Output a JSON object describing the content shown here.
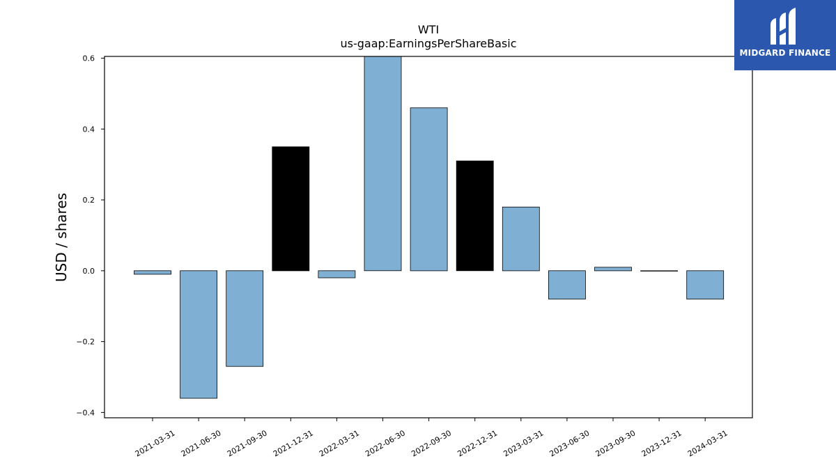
{
  "chart_data": {
    "type": "bar",
    "title": "WTI",
    "subtitle": "us-gaap:EarningsPerShareBasic",
    "xlabel": "",
    "ylabel": "USD / shares",
    "ylim": [
      -0.415,
      0.605
    ],
    "yticks": [
      0.6,
      0.4,
      0.2,
      0.0,
      -0.2,
      -0.4
    ],
    "ytick_labels": [
      "0.6",
      "0.4",
      "0.2",
      "0.0",
      "−0.2",
      "−0.4"
    ],
    "grid": false,
    "categories": [
      "2021-03-31",
      "2021-06-30",
      "2021-09-30",
      "2021-12-31",
      "2022-03-31",
      "2022-06-30",
      "2022-09-30",
      "2022-12-31",
      "2023-03-31",
      "2023-06-30",
      "2023-09-30",
      "2023-12-31",
      "2024-03-31"
    ],
    "values": [
      -0.01,
      -0.36,
      -0.27,
      0.35,
      -0.02,
      0.61,
      0.46,
      0.31,
      0.18,
      -0.08,
      0.01,
      0.0,
      -0.08
    ],
    "highlight": [
      false,
      false,
      false,
      true,
      false,
      false,
      false,
      true,
      false,
      false,
      false,
      false,
      false
    ],
    "colors": {
      "bar": "#7fb0d3",
      "highlight": "#000000",
      "edge": "#000000"
    }
  },
  "logo": {
    "text": "MIDGARD FINANCE",
    "background": "#2b58ae"
  }
}
